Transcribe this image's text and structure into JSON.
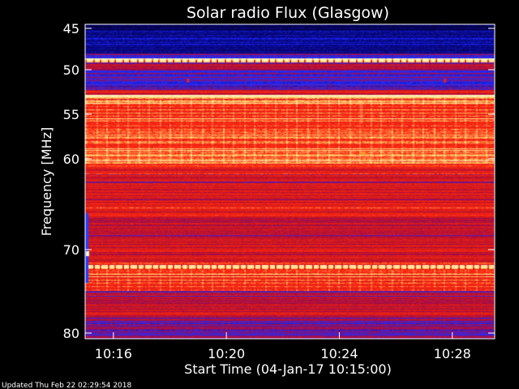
{
  "chart_data": {
    "type": "heatmap",
    "title": "Solar radio Flux (Glasgow)",
    "xlabel": "Start Time (04-Jan-17 10:15:00)",
    "ylabel": "Frequency [MHz]",
    "x_ticks": [
      "10:16",
      "10:20",
      "10:24",
      "10:28"
    ],
    "x_tick_minutes": [
      1,
      5,
      9,
      13
    ],
    "xlim_minutes": [
      0,
      14.5
    ],
    "y_ticks": [
      "45",
      "50",
      "55",
      "60",
      "70",
      "80"
    ],
    "y_tick_values": [
      45,
      50,
      55,
      60,
      70,
      80
    ],
    "ylim": [
      44.5,
      80
    ],
    "grid": false,
    "colormap": [
      "#000033",
      "#0a0a9a",
      "#1e2cff",
      "#a00a4a",
      "#d51a1a",
      "#ff2a12",
      "#ffd870",
      "#fff6c8"
    ],
    "bands": [
      {
        "f0": 44.5,
        "f1": 45.5,
        "level": 0.05
      },
      {
        "f0": 45.5,
        "f1": 48.0,
        "level": 0.15
      },
      {
        "f0": 48.0,
        "f1": 48.6,
        "level": 0.35
      },
      {
        "f0": 48.6,
        "f1": 49.1,
        "level": 0.98
      },
      {
        "f0": 49.1,
        "f1": 50.1,
        "level": 0.5
      },
      {
        "f0": 50.1,
        "f1": 52.3,
        "level": 0.3
      },
      {
        "f0": 52.3,
        "f1": 52.8,
        "level": 0.55
      },
      {
        "f0": 52.8,
        "f1": 53.2,
        "level": 0.9
      },
      {
        "f0": 53.2,
        "f1": 54.0,
        "level": 0.75
      },
      {
        "f0": 54.0,
        "f1": 57.0,
        "level": 0.72
      },
      {
        "f0": 57.0,
        "f1": 60.5,
        "level": 0.76
      },
      {
        "f0": 60.5,
        "f1": 62.0,
        "level": 0.65
      },
      {
        "f0": 62.0,
        "f1": 64.5,
        "level": 0.55
      },
      {
        "f0": 64.5,
        "f1": 66.5,
        "level": 0.6
      },
      {
        "f0": 66.5,
        "f1": 70.0,
        "level": 0.52
      },
      {
        "f0": 70.0,
        "f1": 71.8,
        "level": 0.6
      },
      {
        "f0": 71.8,
        "f1": 72.3,
        "level": 0.97
      },
      {
        "f0": 72.3,
        "f1": 73.5,
        "level": 0.68
      },
      {
        "f0": 73.5,
        "f1": 75.0,
        "level": 0.7
      },
      {
        "f0": 75.0,
        "f1": 78.0,
        "level": 0.5
      },
      {
        "f0": 78.0,
        "f1": 80.0,
        "level": 0.42
      }
    ]
  },
  "footer": {
    "updated": "Updated Thu Feb 22 02:29:54 2018"
  }
}
